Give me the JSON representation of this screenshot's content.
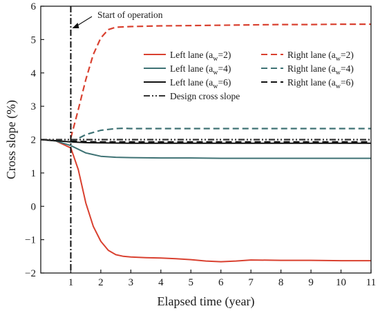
{
  "chart_data": {
    "type": "line",
    "xlabel": "Elapsed time (year)",
    "ylabel": "Cross slope (%)",
    "xlim": [
      0,
      11
    ],
    "ylim": [
      -2,
      6
    ],
    "xticks": [
      1,
      2,
      3,
      4,
      5,
      6,
      7,
      8,
      9,
      10,
      11
    ],
    "yticks": [
      -2,
      -1,
      0,
      1,
      2,
      3,
      4,
      5,
      6
    ],
    "grid": false,
    "legend_position": "upper-right",
    "annotation": {
      "text": "Start of operation",
      "x": 1
    },
    "series": [
      {
        "label_main": "Left lane (a",
        "label_sub": "w",
        "label_rest": "=2)",
        "color": "#d9402f",
        "dash": "solid",
        "x": [
          0,
          0.5,
          1,
          1.25,
          1.5,
          1.75,
          2,
          2.25,
          2.5,
          2.75,
          3,
          3.5,
          4,
          4.5,
          5,
          5.5,
          6,
          6.5,
          7,
          8,
          9,
          10,
          11
        ],
        "y": [
          2.0,
          1.96,
          1.75,
          1.1,
          0.1,
          -0.6,
          -1.05,
          -1.32,
          -1.45,
          -1.5,
          -1.52,
          -1.54,
          -1.55,
          -1.57,
          -1.6,
          -1.64,
          -1.66,
          -1.64,
          -1.61,
          -1.62,
          -1.62,
          -1.63,
          -1.63
        ]
      },
      {
        "label_main": "Left lane (a",
        "label_sub": "w",
        "label_rest": "=4)",
        "color": "#3e7274",
        "dash": "solid",
        "x": [
          0,
          0.5,
          1,
          1.5,
          2,
          2.5,
          3,
          4,
          5,
          6,
          7,
          8,
          9,
          10,
          11
        ],
        "y": [
          2.0,
          1.96,
          1.82,
          1.6,
          1.5,
          1.47,
          1.46,
          1.45,
          1.45,
          1.44,
          1.44,
          1.44,
          1.44,
          1.44,
          1.44
        ]
      },
      {
        "label_main": "Left lane (a",
        "label_sub": "w",
        "label_rest": "=6)",
        "color": "#111111",
        "dash": "solid",
        "x": [
          0,
          0.5,
          1,
          1.5,
          2,
          3,
          4,
          5,
          6,
          7,
          8,
          9,
          10,
          11
        ],
        "y": [
          2.0,
          1.97,
          1.93,
          1.91,
          1.9,
          1.89,
          1.89,
          1.89,
          1.89,
          1.89,
          1.89,
          1.89,
          1.89,
          1.89
        ]
      },
      {
        "label_main": "Right lane (a",
        "label_sub": "w",
        "label_rest": "=2)",
        "color": "#d9402f",
        "dash": "dashed",
        "x": [
          1,
          1.25,
          1.5,
          1.75,
          2,
          2.25,
          2.5,
          2.75,
          3,
          4,
          5,
          6,
          7,
          8,
          9,
          10,
          11
        ],
        "y": [
          2.05,
          2.9,
          3.8,
          4.55,
          5.05,
          5.3,
          5.37,
          5.38,
          5.39,
          5.41,
          5.42,
          5.43,
          5.44,
          5.45,
          5.45,
          5.46,
          5.46
        ]
      },
      {
        "label_main": "Right lane (a",
        "label_sub": "w",
        "label_rest": "=4)",
        "color": "#3e7274",
        "dash": "dashed",
        "x": [
          1,
          1.5,
          2,
          2.5,
          2.75,
          3,
          4,
          5,
          6,
          7,
          8,
          9,
          10,
          11
        ],
        "y": [
          1.92,
          2.15,
          2.28,
          2.33,
          2.34,
          2.33,
          2.33,
          2.33,
          2.33,
          2.33,
          2.33,
          2.33,
          2.33,
          2.33
        ]
      },
      {
        "label_main": "Right lane (a",
        "label_sub": "w",
        "label_rest": "=6)",
        "color": "#111111",
        "dash": "dashed",
        "x": [
          1,
          1.5,
          2,
          3,
          4,
          5,
          6,
          7,
          8,
          9,
          10,
          11
        ],
        "y": [
          1.95,
          1.94,
          1.93,
          1.93,
          1.93,
          1.93,
          1.93,
          1.93,
          1.93,
          1.93,
          1.93,
          1.93
        ]
      },
      {
        "label_main": "Design cross slope",
        "label_sub": "",
        "label_rest": "",
        "color": "#333333",
        "dash": "dashdotdot",
        "x": [
          0,
          11
        ],
        "y": [
          2.0,
          2.0
        ]
      }
    ]
  }
}
